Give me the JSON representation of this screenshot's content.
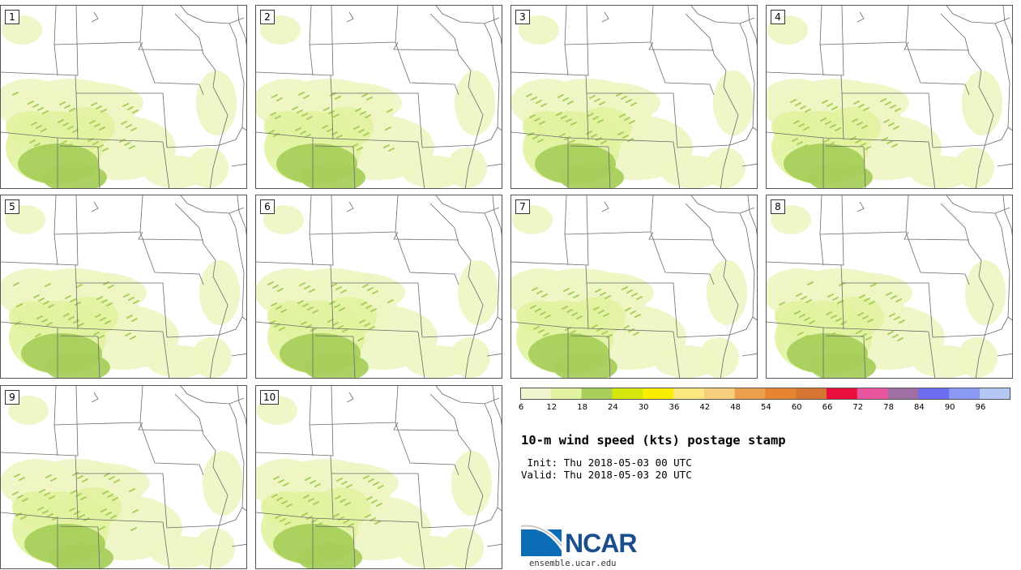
{
  "panels": [
    "1",
    "2",
    "3",
    "4",
    "5",
    "6",
    "7",
    "8",
    "9",
    "10"
  ],
  "colorbar": {
    "ticks": [
      "6",
      "12",
      "18",
      "24",
      "30",
      "36",
      "42",
      "48",
      "54",
      "60",
      "66",
      "72",
      "78",
      "84",
      "90",
      "96"
    ],
    "colors": [
      "#f0f5d0",
      "#e1f3a0",
      "#a8cf5c",
      "#d5e70f",
      "#f9ee00",
      "#fbe77d",
      "#f5cf7c",
      "#ee9f4c",
      "#e78431",
      "#d77533",
      "#e90e3c",
      "#e9549e",
      "#a06fa4",
      "#6c6cf0",
      "#8b9af5",
      "#b5c8f5"
    ]
  },
  "title": "10-m wind speed (kts) postage stamp",
  "init_line": " Init: Thu 2018-05-03 00 UTC",
  "valid_line": "Valid: Thu 2018-05-03 20 UTC",
  "logo": {
    "text": "NCAR",
    "site": "ensemble.ucar.edu"
  },
  "map_colors": {
    "light": "#eef5c4",
    "mid": "#e1f3a0",
    "strong": "#a8cf5c",
    "border": "#6a6a6a"
  }
}
